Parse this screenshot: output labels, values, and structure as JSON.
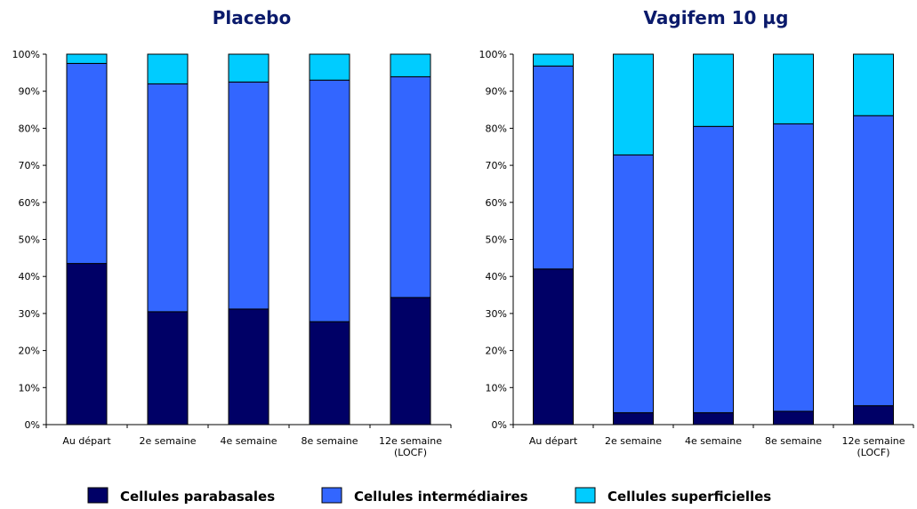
{
  "chart_data": [
    {
      "type": "bar",
      "stacked": true,
      "title": "Placebo",
      "categories": [
        [
          "Au départ"
        ],
        [
          "2e semaine"
        ],
        [
          "4e semaine"
        ],
        [
          "8e semaine"
        ],
        [
          "12e semaine",
          "(LOCF)"
        ]
      ],
      "series": [
        {
          "name": "Cellules parabasales",
          "color": "#000066",
          "values": [
            43.5,
            30.5,
            31.2,
            27.8,
            34.3
          ]
        },
        {
          "name": "Cellules intermédiaires",
          "color": "#3366ff",
          "values": [
            54.0,
            61.5,
            61.3,
            65.2,
            59.6
          ]
        },
        {
          "name": "Cellules superficielles",
          "color": "#00ccff",
          "values": [
            2.5,
            8.0,
            7.5,
            7.0,
            6.1
          ]
        }
      ],
      "ylim": [
        0,
        100
      ],
      "yticks": [
        "0%",
        "10%",
        "20%",
        "30%",
        "40%",
        "50%",
        "60%",
        "70%",
        "80%",
        "90%",
        "100%"
      ],
      "grid": false
    },
    {
      "type": "bar",
      "stacked": true,
      "title": "Vagifem 10 µg",
      "categories": [
        [
          "Au départ"
        ],
        [
          "2e semaine"
        ],
        [
          "4e semaine"
        ],
        [
          "8e semaine"
        ],
        [
          "12e semaine",
          "(LOCF)"
        ]
      ],
      "series": [
        {
          "name": "Cellules parabasales",
          "color": "#000066",
          "values": [
            42.0,
            3.2,
            3.2,
            3.6,
            5.1
          ]
        },
        {
          "name": "Cellules intermédiaires",
          "color": "#3366ff",
          "values": [
            54.8,
            69.6,
            77.3,
            77.6,
            78.3
          ]
        },
        {
          "name": "Cellules superficielles",
          "color": "#00ccff",
          "values": [
            3.2,
            27.2,
            19.5,
            18.8,
            16.6
          ]
        }
      ],
      "ylim": [
        0,
        100
      ],
      "yticks": [
        "0%",
        "10%",
        "20%",
        "30%",
        "40%",
        "50%",
        "60%",
        "70%",
        "80%",
        "90%",
        "100%"
      ],
      "grid": false
    }
  ],
  "legend": {
    "position": "bottom",
    "items": [
      {
        "label": "Cellules parabasales",
        "color": "#000066"
      },
      {
        "label": "Cellules intermédiaires",
        "color": "#3366ff"
      },
      {
        "label": "Cellules superficielles",
        "color": "#00ccff"
      }
    ]
  }
}
